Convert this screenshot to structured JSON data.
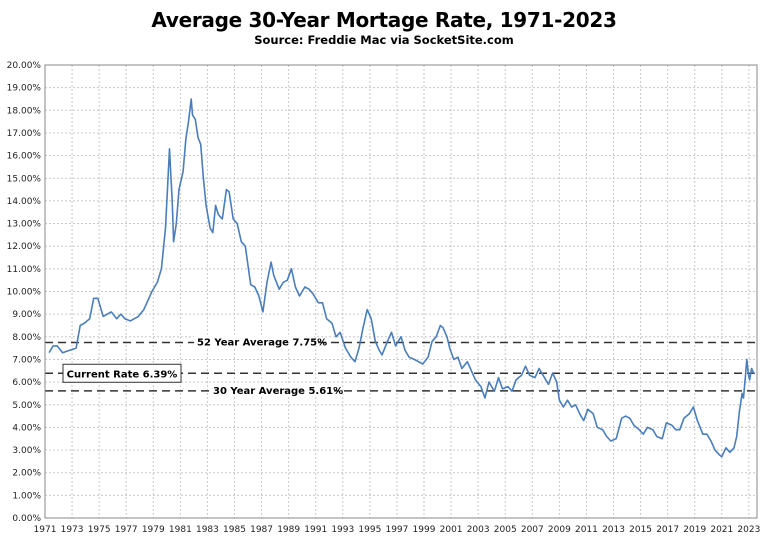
{
  "chart_data": {
    "type": "line",
    "title": "Average 30-Year Mortage Rate, 1971-2023",
    "subtitle": "Source: Freddie Mac via SocketSite.com",
    "xlabel": "",
    "ylabel": "",
    "xlim": [
      1971,
      2023.6
    ],
    "ylim": [
      0,
      20
    ],
    "grid": true,
    "x_ticks": [
      "1971",
      "1973",
      "1975",
      "1977",
      "1979",
      "1981",
      "1983",
      "1985",
      "1987",
      "1989",
      "1991",
      "1993",
      "1995",
      "1997",
      "1999",
      "2001",
      "2003",
      "2005",
      "2007",
      "2009",
      "2011",
      "2013",
      "2015",
      "2017",
      "2019",
      "2021",
      "2023"
    ],
    "y_ticks": [
      "0.00%",
      "1.00%",
      "2.00%",
      "3.00%",
      "4.00%",
      "5.00%",
      "6.00%",
      "7.00%",
      "8.00%",
      "9.00%",
      "10.00%",
      "11.00%",
      "12.00%",
      "13.00%",
      "14.00%",
      "15.00%",
      "16.00%",
      "17.00%",
      "18.00%",
      "19.00%",
      "20.00%"
    ],
    "series": [
      {
        "color": "#4a7ebb",
        "points": [
          [
            1971.3,
            7.3
          ],
          [
            1971.6,
            7.6
          ],
          [
            1971.9,
            7.6
          ],
          [
            1972.3,
            7.3
          ],
          [
            1972.8,
            7.4
          ],
          [
            1973.3,
            7.5
          ],
          [
            1973.6,
            8.5
          ],
          [
            1973.9,
            8.6
          ],
          [
            1974.3,
            8.8
          ],
          [
            1974.6,
            9.7
          ],
          [
            1974.9,
            9.7
          ],
          [
            1975.3,
            8.9
          ],
          [
            1975.6,
            9.0
          ],
          [
            1975.9,
            9.1
          ],
          [
            1976.3,
            8.8
          ],
          [
            1976.6,
            9.0
          ],
          [
            1976.9,
            8.8
          ],
          [
            1977.3,
            8.7
          ],
          [
            1977.6,
            8.8
          ],
          [
            1977.9,
            8.9
          ],
          [
            1978.3,
            9.2
          ],
          [
            1978.6,
            9.6
          ],
          [
            1978.9,
            10.0
          ],
          [
            1979.3,
            10.4
          ],
          [
            1979.6,
            11.0
          ],
          [
            1979.9,
            12.8
          ],
          [
            1980.2,
            16.3
          ],
          [
            1980.4,
            14.0
          ],
          [
            1980.5,
            12.2
          ],
          [
            1980.7,
            13.0
          ],
          [
            1980.9,
            14.5
          ],
          [
            1981.2,
            15.3
          ],
          [
            1981.4,
            16.7
          ],
          [
            1981.6,
            17.5
          ],
          [
            1981.8,
            18.5
          ],
          [
            1981.9,
            17.8
          ],
          [
            1982.1,
            17.6
          ],
          [
            1982.3,
            16.8
          ],
          [
            1982.5,
            16.5
          ],
          [
            1982.7,
            15.0
          ],
          [
            1982.9,
            13.8
          ],
          [
            1983.2,
            12.8
          ],
          [
            1983.4,
            12.6
          ],
          [
            1983.6,
            13.8
          ],
          [
            1983.8,
            13.4
          ],
          [
            1984.1,
            13.2
          ],
          [
            1984.4,
            14.5
          ],
          [
            1984.6,
            14.4
          ],
          [
            1984.9,
            13.2
          ],
          [
            1985.2,
            13.0
          ],
          [
            1985.5,
            12.2
          ],
          [
            1985.8,
            12.0
          ],
          [
            1986.2,
            10.3
          ],
          [
            1986.5,
            10.2
          ],
          [
            1986.8,
            9.8
          ],
          [
            1987.1,
            9.1
          ],
          [
            1987.4,
            10.4
          ],
          [
            1987.7,
            11.3
          ],
          [
            1987.9,
            10.7
          ],
          [
            1988.3,
            10.1
          ],
          [
            1988.6,
            10.4
          ],
          [
            1988.9,
            10.5
          ],
          [
            1989.2,
            11.0
          ],
          [
            1989.5,
            10.2
          ],
          [
            1989.8,
            9.8
          ],
          [
            1990.2,
            10.2
          ],
          [
            1990.5,
            10.1
          ],
          [
            1990.8,
            9.9
          ],
          [
            1991.2,
            9.5
          ],
          [
            1991.5,
            9.5
          ],
          [
            1991.8,
            8.8
          ],
          [
            1992.2,
            8.6
          ],
          [
            1992.5,
            8.0
          ],
          [
            1992.8,
            8.2
          ],
          [
            1993.2,
            7.5
          ],
          [
            1993.6,
            7.1
          ],
          [
            1993.9,
            6.9
          ],
          [
            1994.2,
            7.5
          ],
          [
            1994.5,
            8.4
          ],
          [
            1994.8,
            9.2
          ],
          [
            1995.1,
            8.8
          ],
          [
            1995.4,
            7.8
          ],
          [
            1995.7,
            7.4
          ],
          [
            1995.9,
            7.2
          ],
          [
            1996.3,
            7.8
          ],
          [
            1996.6,
            8.2
          ],
          [
            1996.9,
            7.6
          ],
          [
            1997.3,
            8.0
          ],
          [
            1997.6,
            7.4
          ],
          [
            1997.9,
            7.1
          ],
          [
            1998.3,
            7.0
          ],
          [
            1998.6,
            6.9
          ],
          [
            1998.9,
            6.8
          ],
          [
            1999.3,
            7.1
          ],
          [
            1999.6,
            7.8
          ],
          [
            1999.9,
            8.0
          ],
          [
            2000.2,
            8.5
          ],
          [
            2000.4,
            8.4
          ],
          [
            2000.7,
            8.0
          ],
          [
            2000.9,
            7.5
          ],
          [
            2001.2,
            7.0
          ],
          [
            2001.5,
            7.1
          ],
          [
            2001.8,
            6.6
          ],
          [
            2002.2,
            6.9
          ],
          [
            2002.5,
            6.5
          ],
          [
            2002.8,
            6.1
          ],
          [
            2003.2,
            5.8
          ],
          [
            2003.5,
            5.3
          ],
          [
            2003.8,
            6.0
          ],
          [
            2004.2,
            5.6
          ],
          [
            2004.5,
            6.2
          ],
          [
            2004.8,
            5.7
          ],
          [
            2005.2,
            5.8
          ],
          [
            2005.5,
            5.6
          ],
          [
            2005.8,
            6.1
          ],
          [
            2006.2,
            6.3
          ],
          [
            2006.5,
            6.7
          ],
          [
            2006.8,
            6.3
          ],
          [
            2007.2,
            6.2
          ],
          [
            2007.5,
            6.6
          ],
          [
            2007.8,
            6.3
          ],
          [
            2008.2,
            5.9
          ],
          [
            2008.5,
            6.4
          ],
          [
            2008.8,
            6.0
          ],
          [
            2009.0,
            5.2
          ],
          [
            2009.3,
            4.9
          ],
          [
            2009.6,
            5.2
          ],
          [
            2009.9,
            4.9
          ],
          [
            2010.2,
            5.0
          ],
          [
            2010.5,
            4.6
          ],
          [
            2010.8,
            4.3
          ],
          [
            2011.1,
            4.8
          ],
          [
            2011.5,
            4.6
          ],
          [
            2011.8,
            4.0
          ],
          [
            2012.2,
            3.9
          ],
          [
            2012.5,
            3.6
          ],
          [
            2012.8,
            3.4
          ],
          [
            2013.2,
            3.5
          ],
          [
            2013.6,
            4.4
          ],
          [
            2013.9,
            4.5
          ],
          [
            2014.2,
            4.4
          ],
          [
            2014.5,
            4.1
          ],
          [
            2014.9,
            3.9
          ],
          [
            2015.2,
            3.7
          ],
          [
            2015.5,
            4.0
          ],
          [
            2015.9,
            3.9
          ],
          [
            2016.2,
            3.6
          ],
          [
            2016.6,
            3.5
          ],
          [
            2016.9,
            4.2
          ],
          [
            2017.3,
            4.1
          ],
          [
            2017.6,
            3.9
          ],
          [
            2017.9,
            3.9
          ],
          [
            2018.2,
            4.4
          ],
          [
            2018.6,
            4.6
          ],
          [
            2018.9,
            4.9
          ],
          [
            2019.2,
            4.3
          ],
          [
            2019.6,
            3.7
          ],
          [
            2019.9,
            3.7
          ],
          [
            2020.2,
            3.4
          ],
          [
            2020.5,
            3.0
          ],
          [
            2020.8,
            2.8
          ],
          [
            2021.0,
            2.7
          ],
          [
            2021.3,
            3.1
          ],
          [
            2021.6,
            2.9
          ],
          [
            2021.9,
            3.1
          ],
          [
            2022.1,
            3.6
          ],
          [
            2022.3,
            4.7
          ],
          [
            2022.5,
            5.5
          ],
          [
            2022.6,
            5.3
          ],
          [
            2022.75,
            6.3
          ],
          [
            2022.85,
            7.0
          ],
          [
            2022.95,
            6.4
          ],
          [
            2023.05,
            6.1
          ],
          [
            2023.2,
            6.6
          ],
          [
            2023.35,
            6.4
          ],
          [
            2023.45,
            6.39
          ]
        ]
      }
    ],
    "reference_lines": [
      {
        "label": "52 Year Average 7.75%",
        "value": 7.75
      },
      {
        "label": "Current Rate 6.39%",
        "value": 6.39
      },
      {
        "label": "30 Year Average 5.61%",
        "value": 5.61
      }
    ]
  }
}
